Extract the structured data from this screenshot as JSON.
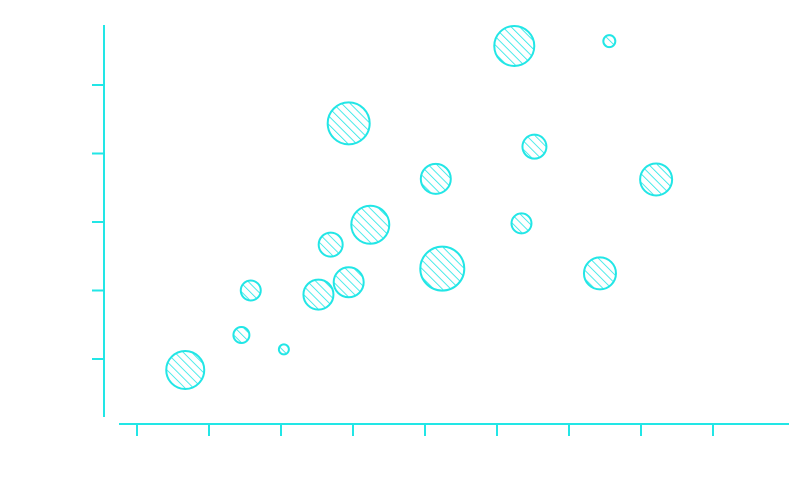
{
  "chart_data": {
    "type": "scatter",
    "subtype": "bubble",
    "title": "",
    "xlabel": "",
    "ylabel": "",
    "x_tick_labels": [],
    "y_tick_labels": [],
    "xlim": [
      0,
      9
    ],
    "ylim": [
      0,
      6
    ],
    "x_ticks": [
      0,
      1,
      2,
      3,
      4,
      5,
      6,
      7,
      8
    ],
    "y_ticks": [
      1,
      2,
      3,
      4,
      5
    ],
    "grid": false,
    "legend": "none",
    "style": {
      "color": "#22e6e6",
      "fill": "diagonal-hatch"
    },
    "series": [
      {
        "points": [
          {
            "x": 0.67,
            "y": 0.84,
            "size": 19
          },
          {
            "x": 1.45,
            "y": 1.35,
            "size": 8
          },
          {
            "x": 1.58,
            "y": 2.0,
            "size": 10
          },
          {
            "x": 2.04,
            "y": 1.14,
            "size": 5
          },
          {
            "x": 2.52,
            "y": 1.94,
            "size": 15
          },
          {
            "x": 2.69,
            "y": 2.67,
            "size": 12
          },
          {
            "x": 2.94,
            "y": 4.44,
            "size": 21
          },
          {
            "x": 2.94,
            "y": 2.12,
            "size": 15
          },
          {
            "x": 3.24,
            "y": 2.96,
            "size": 19
          },
          {
            "x": 4.15,
            "y": 3.63,
            "size": 15
          },
          {
            "x": 4.24,
            "y": 2.32,
            "size": 22
          },
          {
            "x": 5.24,
            "y": 5.57,
            "size": 20
          },
          {
            "x": 5.34,
            "y": 2.98,
            "size": 10
          },
          {
            "x": 5.52,
            "y": 4.1,
            "size": 12
          },
          {
            "x": 6.43,
            "y": 2.25,
            "size": 16
          },
          {
            "x": 6.56,
            "y": 5.64,
            "size": 6
          },
          {
            "x": 7.21,
            "y": 3.62,
            "size": 16
          }
        ]
      }
    ]
  }
}
